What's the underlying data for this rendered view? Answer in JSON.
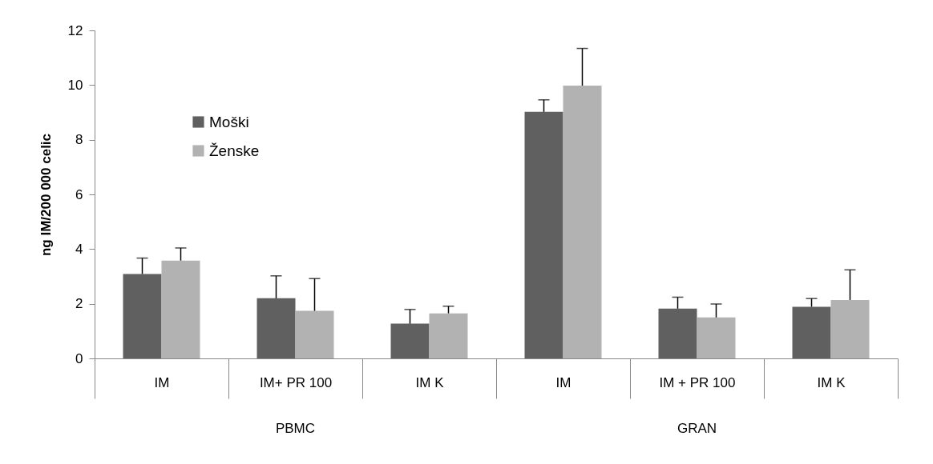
{
  "chart_data": {
    "type": "bar",
    "ylabel": "ng IM/200 000 celic",
    "categories": [
      "IM",
      "IM+ PR 100",
      "IM K",
      "IM",
      "IM + PR 100",
      "IM K"
    ],
    "annotations": [
      "PBMC",
      "GRAN"
    ],
    "series": [
      {
        "name": "Moški",
        "color": "#606060",
        "values": [
          3.09,
          2.2,
          1.27,
          9.02,
          1.82,
          1.89
        ],
        "errors": [
          [
            3.09,
            3.67
          ],
          [
            2.2,
            3.02
          ],
          [
            1.27,
            1.79
          ],
          [
            9.02,
            9.46
          ],
          [
            1.82,
            2.24
          ],
          [
            1.89,
            2.19
          ]
        ]
      },
      {
        "name": "Ženske",
        "color": "#b2b2b2",
        "values": [
          3.58,
          1.74,
          1.65,
          9.98,
          1.5,
          2.14
        ],
        "errors": [
          [
            3.58,
            4.04
          ],
          [
            1.74,
            2.92
          ],
          [
            1.65,
            1.91
          ],
          [
            9.98,
            11.34
          ],
          [
            1.5,
            1.99
          ],
          [
            2.14,
            3.24
          ]
        ]
      }
    ],
    "ylim": [
      0,
      12
    ],
    "yticks": [
      0,
      2,
      4,
      6,
      8,
      10,
      12
    ],
    "grid": false,
    "legend": "top left"
  }
}
